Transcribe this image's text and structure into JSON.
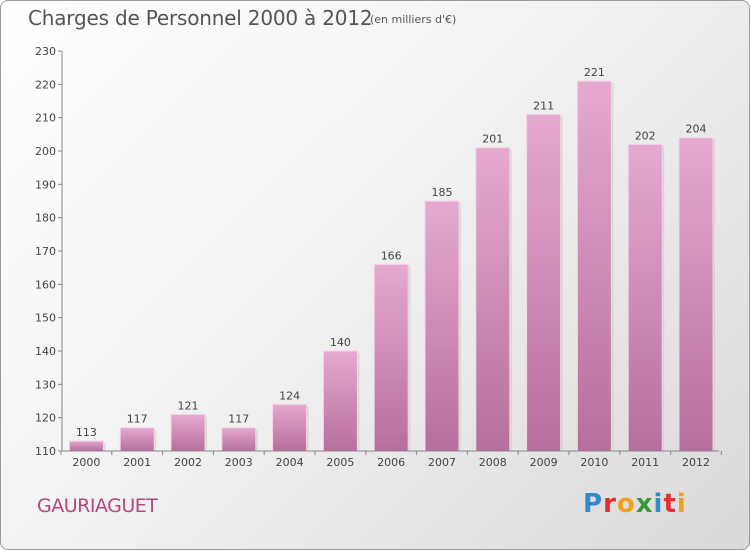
{
  "header": {
    "title": "Charges de Personnel 2000 à 2012",
    "subtitle": "(en milliers d'€)"
  },
  "footer": {
    "commune": "GAURIAGUET",
    "logo": [
      "P",
      "r",
      "o",
      "x",
      "i",
      "t",
      "i"
    ],
    "logo_colors": [
      "#2f8bcc",
      "#e2302f",
      "#f0a020",
      "#3a9a3a",
      "#2f8bcc",
      "#e2302f",
      "#f0a020"
    ]
  },
  "chart_data": {
    "type": "bar",
    "categories": [
      "2000",
      "2001",
      "2002",
      "2003",
      "2004",
      "2005",
      "2006",
      "2007",
      "2008",
      "2009",
      "2010",
      "2011",
      "2012"
    ],
    "values": [
      113,
      117,
      121,
      117,
      124,
      140,
      166,
      185,
      201,
      211,
      221,
      202,
      204
    ],
    "title": "Charges de Personnel 2000 à 2012",
    "subtitle": "(en milliers d'€)",
    "xlabel": "",
    "ylabel": "",
    "ylim": [
      110,
      230
    ],
    "yticks": [
      110,
      120,
      130,
      140,
      150,
      160,
      170,
      180,
      190,
      200,
      210,
      220,
      230
    ],
    "grid": false,
    "bar_color": "#d68fbc"
  }
}
